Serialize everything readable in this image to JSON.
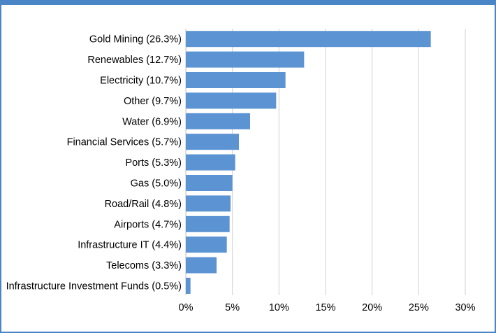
{
  "colors": {
    "bar": "#5b93d3",
    "grid": "#d0d0d0",
    "frame": "#4a86c5"
  },
  "chart_data": {
    "type": "bar",
    "orientation": "horizontal",
    "title": "",
    "xlabel": "",
    "ylabel": "",
    "categories": [
      "Gold Mining (26.3%)",
      "Renewables (12.7%)",
      "Electricity (10.7%)",
      "Other  (9.7%)",
      "Water (6.9%)",
      "Financial Services (5.7%)",
      "Ports (5.3%)",
      "Gas (5.0%)",
      "Road/Rail (4.8%)",
      "Airports (4.7%)",
      "Infrastructure IT (4.4%)",
      "Telecoms (3.3%)",
      "Infrastructure Investment Funds (0.5%)"
    ],
    "values": [
      26.3,
      12.7,
      10.7,
      9.7,
      6.9,
      5.7,
      5.3,
      5.0,
      4.8,
      4.7,
      4.4,
      3.3,
      0.5
    ],
    "xlim": [
      0,
      30
    ],
    "xticks": [
      0,
      5,
      10,
      15,
      20,
      25,
      30
    ],
    "xtick_labels": [
      "0%",
      "5%",
      "10%",
      "15%",
      "20%",
      "25%",
      "30%"
    ],
    "grid": "vertical",
    "legend": "none"
  }
}
